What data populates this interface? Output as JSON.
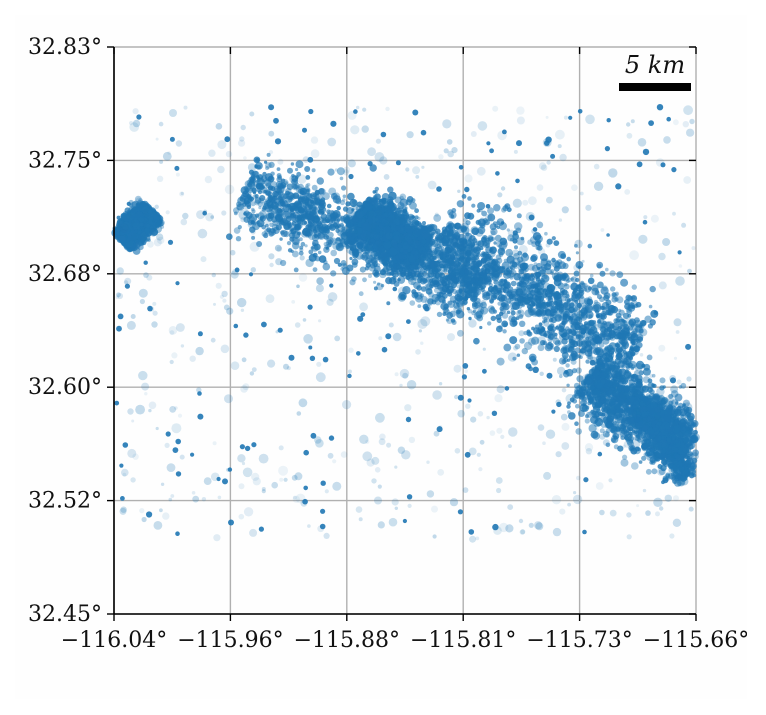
{
  "chart_data": {
    "type": "scatter",
    "title": "",
    "xlabel": "",
    "ylabel": "",
    "x_ticks": [
      "−116.04°",
      "−115.96°",
      "−115.88°",
      "−115.81°",
      "−115.73°",
      "−115.66°"
    ],
    "y_ticks": [
      "32.83°",
      "32.75°",
      "32.68°",
      "32.60°",
      "32.52°",
      "32.45°"
    ],
    "xlim": [
      -116.04,
      -115.66
    ],
    "ylim": [
      32.45,
      32.83
    ],
    "grid": true,
    "point_color": "#1f77b4",
    "scale_bar_label": "5 km",
    "clusters": [
      {
        "lon0": -115.955,
        "lat0": 32.735,
        "lon1": -115.8,
        "lat1": 32.67,
        "width": 0.022,
        "density": "dense"
      },
      {
        "lon0": -115.83,
        "lat0": 32.7,
        "lon1": -115.7,
        "lat1": 32.625,
        "width": 0.03,
        "density": "dense"
      },
      {
        "lon0": -115.73,
        "lat0": 32.61,
        "lon1": -115.665,
        "lat1": 32.56,
        "width": 0.02,
        "density": "dense"
      },
      {
        "lon0": -116.035,
        "lat0": 32.7,
        "lon1": -116.015,
        "lat1": 32.72,
        "width": 0.008,
        "density": "dense"
      },
      {
        "lon0": -115.88,
        "lat0": 32.72,
        "lon1": -115.84,
        "lat1": 32.69,
        "width": 0.015,
        "density": "dense"
      },
      {
        "lon0": -115.69,
        "lat0": 32.59,
        "lon1": -115.665,
        "lat1": 32.54,
        "width": 0.01,
        "density": "medium"
      }
    ]
  }
}
